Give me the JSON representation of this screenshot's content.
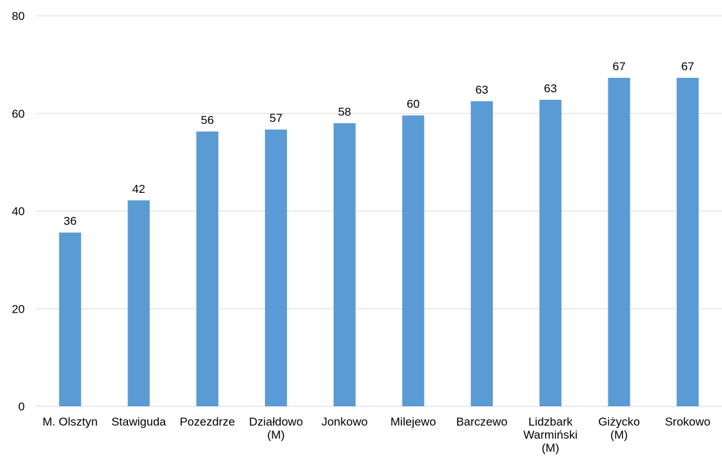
{
  "chart_data": {
    "type": "bar",
    "title": "",
    "xlabel": "",
    "ylabel": "",
    "ylim": [
      0,
      80
    ],
    "yticks": [
      0,
      20,
      40,
      60,
      80
    ],
    "grid": true,
    "legend": "none",
    "bar_color": "#5b9bd5",
    "categories": [
      "M. Olsztyn",
      "Stawiguda",
      "Pozezdrze",
      "Działdowo (M)",
      "Jonkowo",
      "Milejewo",
      "Barczewo",
      "Lidzbark Warmiński (M)",
      "Giżycko (M)",
      "Srokowo"
    ],
    "category_lines": [
      [
        "M. Olsztyn"
      ],
      [
        "Stawiguda"
      ],
      [
        "Pozezdrze"
      ],
      [
        "Działdowo",
        "(M)"
      ],
      [
        "Jonkowo"
      ],
      [
        "Milejewo"
      ],
      [
        "Barczewo"
      ],
      [
        "Lidzbark",
        "Warmiński",
        "(M)"
      ],
      [
        "Giżycko",
        "(M)"
      ],
      [
        "Srokowo"
      ]
    ],
    "values": [
      35.6,
      42.2,
      56.3,
      56.7,
      58.0,
      59.6,
      62.5,
      62.8,
      67.3,
      67.3
    ],
    "data_labels": [
      "36",
      "42",
      "56",
      "57",
      "58",
      "60",
      "63",
      "63",
      "67",
      "67"
    ]
  }
}
